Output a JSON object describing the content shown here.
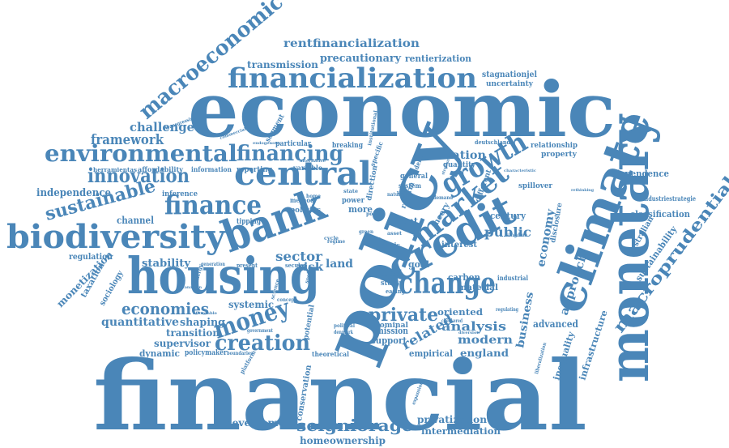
{
  "color": "#4a86b8",
  "words": {
    "financial": "financial",
    "economic": "economic",
    "policy": "policy",
    "monetary": "monetary",
    "climate": "climate",
    "housing": "housing",
    "bank": "bank",
    "credit": "credit",
    "biodiversity": "biodiversity",
    "financialization": "financialization",
    "central": "central",
    "market": "market",
    "change": "change",
    "environmental": "environmental",
    "finance": "finance",
    "growth": "growth",
    "macroeconomic": "macroeconomic",
    "macroprudential": "macroprudential",
    "money": "money",
    "creation": "creation",
    "innovation": "innovation",
    "financing": "financing",
    "sustainable": "sustainable",
    "economies": "economies",
    "private": "private",
    "seigniorage": "seigniorage",
    "rentfinancialization": "rentfinancialization",
    "precautionary": "precautionary",
    "transmission": "transmission",
    "rentierization": "rentierization",
    "stagnationjel": "stagnationjel",
    "uncertainty": "uncertainty",
    "framework": "framework",
    "challenge": "challenge",
    "independence": "independence",
    "sector": "sector",
    "public": "public",
    "economy": "economy",
    "approach": "approach",
    "inflation": "inflation",
    "analysis": "analysis",
    "related": "related",
    "modern": "modern",
    "business": "business",
    "england": "england",
    "stability": "stability",
    "quantitative": "quantitative",
    "transition": "transition",
    "supervisor": "supervisor",
    "shaping": "shaping",
    "dynamic": "dynamic",
    "policymaker": "policymaker",
    "regulation": "regulation",
    "monetization": "monetization",
    "taxation": "taxation",
    "sociology": "sociology",
    "channel": "channel",
    "systemic": "systemic",
    "risk": "risk",
    "land": "land",
    "goal": "goal",
    "carbon": "carbon",
    "material": "material",
    "oriented": "oriented",
    "advanced": "advanced",
    "mission": "mission",
    "support": "support",
    "nominal": "nominal",
    "empirical": "empirical",
    "development": "development",
    "homeownership": "homeownership",
    "privatization": "privatization",
    "intermediation": "intermediation",
    "conservation": "conservation",
    "potential": "potential",
    "inequality": "inequality",
    "infrastructure": "infrastructure",
    "sustainability": "sustainability",
    "australian": "australian",
    "classification": "classification",
    "dependence": "dependence",
    "industriestrategie": "industriestrategie",
    "disclosure": "disclosure",
    "century": "century",
    "spillover": "spillover",
    "relationship": "relationship",
    "property": "property",
    "deutschland": "deutschland",
    "quantity": "quantity",
    "different": "different",
    "theory": "theory",
    "interest": "interest",
    "rent": "rent",
    "reform": "reform",
    "more": "more",
    "power": "power",
    "policies": "policies",
    "method": "method",
    "tipping": "tipping",
    "inference": "inference",
    "information": "information",
    "reporting": "reporting",
    "particular": "particular",
    "breaking": "breaking",
    "variable": "variable",
    "affordability": "affordability",
    "herramientas": "herramientas",
    "transgressing": "transgressing",
    "segment": "segment",
    "direction": "direction",
    "specific": "specific",
    "general": "general",
    "system": "system",
    "demand": "demand",
    "crisis": "crisis",
    "loss": "loss",
    "study": "study",
    "paper": "paper",
    "easing": "easing",
    "fiscal": "fiscal",
    "industrial": "industrial",
    "secular": "secular",
    "present": "present",
    "regulating": "regulating",
    "checkered": "checkered",
    "theoretical": "theoretical",
    "platform": "platform",
    "government": "government",
    "boundaries": "boundaries",
    "political": "political",
    "denmark": "denmark",
    "expansion": "expansion",
    "regime": "regime",
    "cycle": "cycle",
    "value": "value",
    "debt": "debt",
    "kingdom": "kingdom",
    "liberalization": "liberalization",
    "nature": "nature",
    "green": "green",
    "home": "home",
    "social": "social",
    "science": "science",
    "concept": "concept",
    "generation": "generation",
    "asset": "asset",
    "point": "point",
    "state": "state",
    "energy": "energy",
    "institutional": "institutional",
    "commercial": "commercial",
    "endogenous": "endogenous",
    "alternative": "alternative",
    "canadian": "canadian",
    "affordable": "affordable",
    "diversion": "diversion",
    "characteristic": "characteristic",
    "rethinking": "rethinking",
    "structure": "structure"
  }
}
